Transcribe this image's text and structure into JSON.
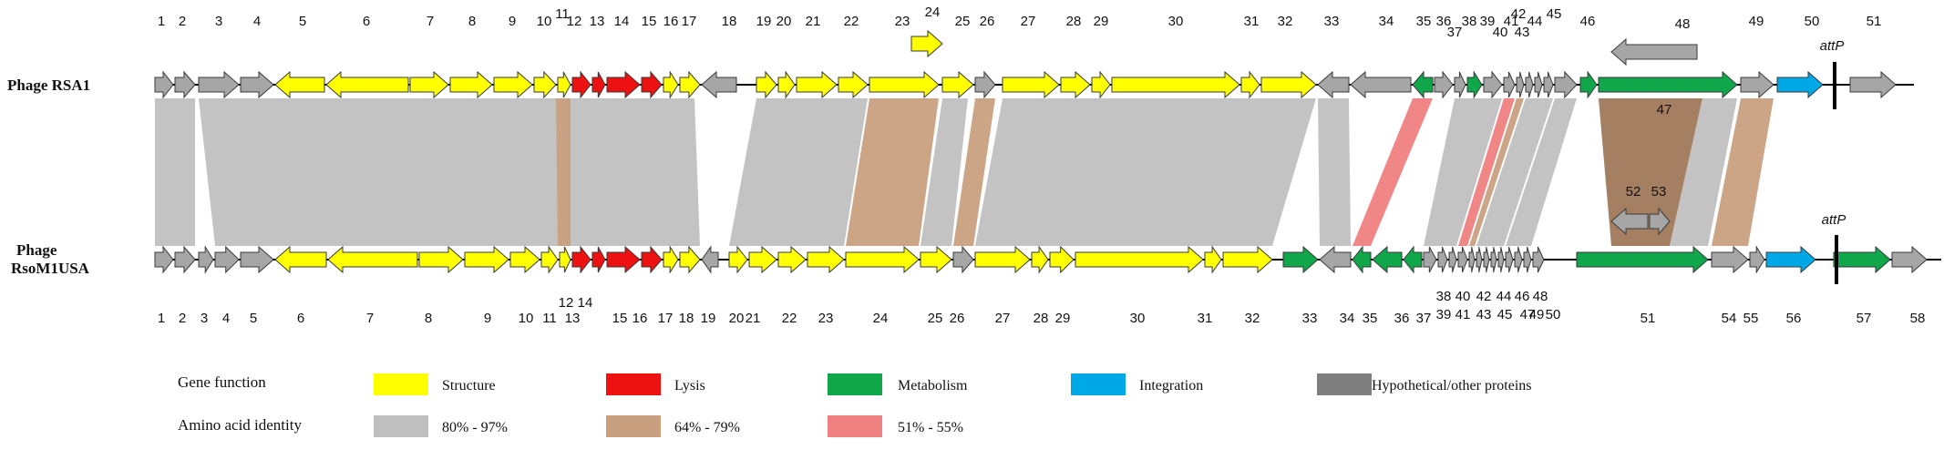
{
  "phage_labels": {
    "top": "Phage RSA1",
    "bottom_line1": "Phage",
    "bottom_line2": "RsoM1USA"
  },
  "attp_label": "attP",
  "colors": {
    "structure": "#ffff00",
    "lysis": "#ee1111",
    "metabolism": "#10a64a",
    "integration": "#00a8e8",
    "hypothetical": "#a6a6a6",
    "id_high": "#c0c0c0",
    "id_mid": "#c8a080",
    "id_low": "#f08080"
  },
  "legend": {
    "gene_function_title": "Gene function",
    "gene_function_items": [
      {
        "label": "Structure",
        "color": "#ffff00"
      },
      {
        "label": "Lysis",
        "color": "#ee1111"
      },
      {
        "label": "Metabolism",
        "color": "#10a64a"
      },
      {
        "label": "Integration",
        "color": "#00a8e8"
      },
      {
        "label": "Hypothetical/other proteins",
        "color": "#7f7f7f"
      }
    ],
    "identity_title": "Amino acid identity",
    "identity_items": [
      {
        "label": "80% - 97%",
        "color": "#c0c0c0"
      },
      {
        "label": "64% - 79%",
        "color": "#c8a080"
      },
      {
        "label": "51% - 55%",
        "color": "#f08080"
      }
    ]
  },
  "genomes": {
    "top": [
      {
        "n": "1",
        "dir": 1,
        "type": "hypothetical"
      },
      {
        "n": "2",
        "dir": 1,
        "type": "hypothetical"
      },
      {
        "n": "3",
        "dir": 1,
        "type": "hypothetical"
      },
      {
        "n": "4",
        "dir": 1,
        "type": "hypothetical"
      },
      {
        "n": "5",
        "dir": -1,
        "type": "structure"
      },
      {
        "n": "6",
        "dir": -1,
        "type": "structure"
      },
      {
        "n": "7",
        "dir": 1,
        "type": "structure"
      },
      {
        "n": "8",
        "dir": 1,
        "type": "structure"
      },
      {
        "n": "9",
        "dir": 1,
        "type": "structure"
      },
      {
        "n": "10",
        "dir": 1,
        "type": "structure"
      },
      {
        "n": "11",
        "dir": 1,
        "type": "structure"
      },
      {
        "n": "12",
        "dir": 1,
        "type": "lysis"
      },
      {
        "n": "13",
        "dir": 1,
        "type": "lysis"
      },
      {
        "n": "14",
        "dir": 1,
        "type": "lysis"
      },
      {
        "n": "15",
        "dir": 1,
        "type": "lysis"
      },
      {
        "n": "16",
        "dir": 1,
        "type": "structure"
      },
      {
        "n": "17",
        "dir": 1,
        "type": "structure"
      },
      {
        "n": "18",
        "dir": -1,
        "type": "hypothetical"
      },
      {
        "n": "19",
        "dir": 1,
        "type": "structure"
      },
      {
        "n": "20",
        "dir": 1,
        "type": "structure"
      },
      {
        "n": "21",
        "dir": 1,
        "type": "structure"
      },
      {
        "n": "22",
        "dir": 1,
        "type": "structure"
      },
      {
        "n": "23",
        "dir": 1,
        "type": "structure"
      },
      {
        "n": "24",
        "dir": 1,
        "type": "structure"
      },
      {
        "n": "25",
        "dir": 1,
        "type": "structure"
      },
      {
        "n": "26",
        "dir": 1,
        "type": "hypothetical"
      },
      {
        "n": "27",
        "dir": 1,
        "type": "structure"
      },
      {
        "n": "28",
        "dir": 1,
        "type": "structure"
      },
      {
        "n": "29",
        "dir": 1,
        "type": "structure"
      },
      {
        "n": "30",
        "dir": 1,
        "type": "structure"
      },
      {
        "n": "31",
        "dir": 1,
        "type": "structure"
      },
      {
        "n": "32",
        "dir": 1,
        "type": "structure"
      },
      {
        "n": "33",
        "dir": -1,
        "type": "hypothetical"
      },
      {
        "n": "34",
        "dir": -1,
        "type": "hypothetical"
      },
      {
        "n": "35",
        "dir": -1,
        "type": "metabolism"
      },
      {
        "n": "36",
        "dir": 1,
        "type": "hypothetical"
      },
      {
        "n": "37",
        "dir": 1,
        "type": "hypothetical"
      },
      {
        "n": "38",
        "dir": 1,
        "type": "metabolism"
      },
      {
        "n": "39",
        "dir": 1,
        "type": "hypothetical"
      },
      {
        "n": "40",
        "dir": 1,
        "type": "hypothetical"
      },
      {
        "n": "41",
        "dir": 1,
        "type": "hypothetical"
      },
      {
        "n": "42",
        "dir": 1,
        "type": "hypothetical"
      },
      {
        "n": "43",
        "dir": 1,
        "type": "hypothetical"
      },
      {
        "n": "44",
        "dir": 1,
        "type": "hypothetical"
      },
      {
        "n": "45",
        "dir": 1,
        "type": "hypothetical"
      },
      {
        "n": "46",
        "dir": 1,
        "type": "metabolism"
      },
      {
        "n": "47",
        "dir": 1,
        "type": "metabolism"
      },
      {
        "n": "48",
        "dir": -1,
        "type": "hypothetical"
      },
      {
        "n": "49",
        "dir": 1,
        "type": "hypothetical"
      },
      {
        "n": "50",
        "dir": 1,
        "type": "integration"
      },
      {
        "n": "51",
        "dir": 1,
        "type": "hypothetical"
      }
    ],
    "bottom": [
      {
        "n": "1",
        "dir": 1,
        "type": "hypothetical"
      },
      {
        "n": "2",
        "dir": 1,
        "type": "hypothetical"
      },
      {
        "n": "3",
        "dir": 1,
        "type": "hypothetical"
      },
      {
        "n": "4",
        "dir": 1,
        "type": "hypothetical"
      },
      {
        "n": "5",
        "dir": 1,
        "type": "hypothetical"
      },
      {
        "n": "6",
        "dir": -1,
        "type": "structure"
      },
      {
        "n": "7",
        "dir": -1,
        "type": "structure"
      },
      {
        "n": "8",
        "dir": 1,
        "type": "structure"
      },
      {
        "n": "9",
        "dir": 1,
        "type": "structure"
      },
      {
        "n": "10",
        "dir": 1,
        "type": "structure"
      },
      {
        "n": "11",
        "dir": 1,
        "type": "structure"
      },
      {
        "n": "12",
        "dir": 1,
        "type": "structure"
      },
      {
        "n": "13",
        "dir": 1,
        "type": "lysis"
      },
      {
        "n": "14",
        "dir": 1,
        "type": "lysis"
      },
      {
        "n": "15",
        "dir": 1,
        "type": "lysis"
      },
      {
        "n": "16",
        "dir": 1,
        "type": "lysis"
      },
      {
        "n": "17",
        "dir": 1,
        "type": "structure"
      },
      {
        "n": "18",
        "dir": 1,
        "type": "structure"
      },
      {
        "n": "19",
        "dir": -1,
        "type": "hypothetical"
      },
      {
        "n": "20",
        "dir": 1,
        "type": "structure"
      },
      {
        "n": "21",
        "dir": 1,
        "type": "structure"
      },
      {
        "n": "22",
        "dir": 1,
        "type": "structure"
      },
      {
        "n": "23",
        "dir": 1,
        "type": "structure"
      },
      {
        "n": "24",
        "dir": 1,
        "type": "structure"
      },
      {
        "n": "25",
        "dir": 1,
        "type": "structure"
      },
      {
        "n": "26",
        "dir": 1,
        "type": "hypothetical"
      },
      {
        "n": "27",
        "dir": 1,
        "type": "structure"
      },
      {
        "n": "28",
        "dir": 1,
        "type": "structure"
      },
      {
        "n": "29",
        "dir": 1,
        "type": "structure"
      },
      {
        "n": "30",
        "dir": 1,
        "type": "structure"
      },
      {
        "n": "31",
        "dir": 1,
        "type": "structure"
      },
      {
        "n": "32",
        "dir": 1,
        "type": "structure"
      },
      {
        "n": "33",
        "dir": 1,
        "type": "metabolism"
      },
      {
        "n": "34",
        "dir": -1,
        "type": "hypothetical"
      },
      {
        "n": "35",
        "dir": -1,
        "type": "metabolism"
      },
      {
        "n": "36",
        "dir": -1,
        "type": "metabolism"
      },
      {
        "n": "37",
        "dir": -1,
        "type": "metabolism"
      },
      {
        "n": "38",
        "dir": 1,
        "type": "hypothetical"
      },
      {
        "n": "39",
        "dir": 1,
        "type": "hypothetical"
      },
      {
        "n": "40",
        "dir": 1,
        "type": "hypothetical"
      },
      {
        "n": "41",
        "dir": 1,
        "type": "hypothetical"
      },
      {
        "n": "42",
        "dir": 1,
        "type": "hypothetical"
      },
      {
        "n": "43",
        "dir": 1,
        "type": "hypothetical"
      },
      {
        "n": "44",
        "dir": 1,
        "type": "hypothetical"
      },
      {
        "n": "45",
        "dir": 1,
        "type": "hypothetical"
      },
      {
        "n": "46",
        "dir": 1,
        "type": "hypothetical"
      },
      {
        "n": "47",
        "dir": 1,
        "type": "hypothetical"
      },
      {
        "n": "48",
        "dir": 1,
        "type": "hypothetical"
      },
      {
        "n": "49",
        "dir": 1,
        "type": "hypothetical"
      },
      {
        "n": "50",
        "dir": 1,
        "type": "hypothetical"
      },
      {
        "n": "51",
        "dir": 1,
        "type": "metabolism"
      },
      {
        "n": "52",
        "dir": -1,
        "type": "hypothetical"
      },
      {
        "n": "53",
        "dir": 1,
        "type": "hypothetical"
      },
      {
        "n": "54",
        "dir": 1,
        "type": "hypothetical"
      },
      {
        "n": "55",
        "dir": 1,
        "type": "hypothetical"
      },
      {
        "n": "56",
        "dir": 1,
        "type": "integration"
      },
      {
        "n": "57",
        "dir": 1,
        "type": "metabolism"
      },
      {
        "n": "58",
        "dir": 1,
        "type": "hypothetical"
      }
    ]
  }
}
